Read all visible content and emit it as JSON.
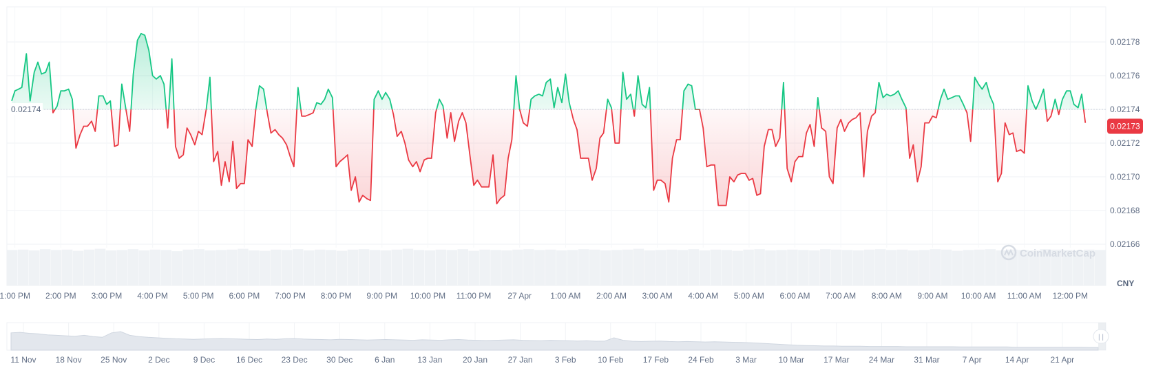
{
  "chart_data": {
    "type": "area",
    "baseline": 0.02174,
    "baseline_label": "0.02174",
    "current_value": 0.02173,
    "current_label": "0.02173",
    "currency": "CNY",
    "watermark": "CoinMarketCap",
    "y_ticks": [
      {
        "value": 0.02178,
        "label": "0.02178"
      },
      {
        "value": 0.02176,
        "label": "0.02176"
      },
      {
        "value": 0.02174,
        "label": "0.02174"
      },
      {
        "value": 0.02172,
        "label": "0.02172"
      },
      {
        "value": 0.0217,
        "label": "0.02170"
      },
      {
        "value": 0.02168,
        "label": "0.02168"
      },
      {
        "value": 0.02166,
        "label": "0.02166"
      }
    ],
    "ylim": [
      0.021657,
      0.021799
    ],
    "x_ticks": [
      "1:00 PM",
      "2:00 PM",
      "3:00 PM",
      "4:00 PM",
      "5:00 PM",
      "6:00 PM",
      "7:00 PM",
      "8:00 PM",
      "9:00 PM",
      "10:00 PM",
      "11:00 PM",
      "27 Apr",
      "1:00 AM",
      "2:00 AM",
      "3:00 AM",
      "4:00 AM",
      "5:00 AM",
      "6:00 AM",
      "7:00 AM",
      "8:00 AM",
      "9:00 AM",
      "10:00 AM",
      "11:00 AM",
      "12:00 PM"
    ],
    "x_tick_hours": [
      0,
      1,
      2,
      3,
      4,
      5,
      6,
      7,
      8,
      9,
      10,
      11,
      12,
      13,
      14,
      15,
      16,
      17,
      18,
      19,
      20,
      21,
      22,
      23
    ],
    "x_range_hours": [
      -0.1,
      23.7
    ],
    "points": [
      [
        -0.07,
        0.021745
      ],
      [
        0.0,
        0.021751
      ],
      [
        0.08,
        0.021752
      ],
      [
        0.15,
        0.021753
      ],
      [
        0.25,
        0.021773
      ],
      [
        0.33,
        0.021745
      ],
      [
        0.42,
        0.021762
      ],
      [
        0.5,
        0.021768
      ],
      [
        0.58,
        0.021761
      ],
      [
        0.67,
        0.021762
      ],
      [
        0.75,
        0.021768
      ],
      [
        0.83,
        0.021738
      ],
      [
        0.92,
        0.021742
      ],
      [
        1.0,
        0.021751
      ],
      [
        1.08,
        0.021751
      ],
      [
        1.17,
        0.021752
      ],
      [
        1.25,
        0.021746
      ],
      [
        1.33,
        0.021717
      ],
      [
        1.42,
        0.021725
      ],
      [
        1.5,
        0.02173
      ],
      [
        1.58,
        0.02173
      ],
      [
        1.67,
        0.021733
      ],
      [
        1.75,
        0.021727
      ],
      [
        1.83,
        0.021748
      ],
      [
        1.92,
        0.021748
      ],
      [
        2.0,
        0.021743
      ],
      [
        2.08,
        0.021745
      ],
      [
        2.17,
        0.021718
      ],
      [
        2.25,
        0.021719
      ],
      [
        2.33,
        0.021755
      ],
      [
        2.42,
        0.02174
      ],
      [
        2.5,
        0.021727
      ],
      [
        2.58,
        0.021761
      ],
      [
        2.67,
        0.021781
      ],
      [
        2.75,
        0.021785
      ],
      [
        2.83,
        0.021784
      ],
      [
        2.92,
        0.021775
      ],
      [
        3.0,
        0.02176
      ],
      [
        3.08,
        0.021758
      ],
      [
        3.17,
        0.02176
      ],
      [
        3.25,
        0.021755
      ],
      [
        3.33,
        0.021729
      ],
      [
        3.42,
        0.02177
      ],
      [
        3.5,
        0.021718
      ],
      [
        3.58,
        0.021711
      ],
      [
        3.67,
        0.021713
      ],
      [
        3.75,
        0.021729
      ],
      [
        3.83,
        0.021725
      ],
      [
        3.92,
        0.021719
      ],
      [
        4.0,
        0.021727
      ],
      [
        4.08,
        0.021725
      ],
      [
        4.17,
        0.02174
      ],
      [
        4.25,
        0.021759
      ],
      [
        4.33,
        0.021709
      ],
      [
        4.42,
        0.021715
      ],
      [
        4.5,
        0.021695
      ],
      [
        4.58,
        0.021709
      ],
      [
        4.67,
        0.021697
      ],
      [
        4.75,
        0.021721
      ],
      [
        4.83,
        0.021693
      ],
      [
        4.92,
        0.021696
      ],
      [
        5.0,
        0.021696
      ],
      [
        5.08,
        0.021722
      ],
      [
        5.17,
        0.021718
      ],
      [
        5.25,
        0.02174
      ],
      [
        5.33,
        0.021754
      ],
      [
        5.42,
        0.021752
      ],
      [
        5.5,
        0.021738
      ],
      [
        5.58,
        0.021726
      ],
      [
        5.67,
        0.021728
      ],
      [
        5.75,
        0.021725
      ],
      [
        5.83,
        0.021723
      ],
      [
        5.92,
        0.021719
      ],
      [
        6.0,
        0.021712
      ],
      [
        6.08,
        0.021706
      ],
      [
        6.17,
        0.021753
      ],
      [
        6.25,
        0.021736
      ],
      [
        6.33,
        0.021736
      ],
      [
        6.42,
        0.021737
      ],
      [
        6.5,
        0.021738
      ],
      [
        6.58,
        0.021744
      ],
      [
        6.67,
        0.021743
      ],
      [
        6.75,
        0.021746
      ],
      [
        6.83,
        0.021752
      ],
      [
        6.92,
        0.021747
      ],
      [
        7.0,
        0.021706
      ],
      [
        7.08,
        0.021709
      ],
      [
        7.17,
        0.021711
      ],
      [
        7.25,
        0.021713
      ],
      [
        7.33,
        0.021692
      ],
      [
        7.42,
        0.0217
      ],
      [
        7.5,
        0.021685
      ],
      [
        7.58,
        0.021689
      ],
      [
        7.67,
        0.021687
      ],
      [
        7.75,
        0.021686
      ],
      [
        7.83,
        0.021746
      ],
      [
        7.92,
        0.021751
      ],
      [
        8.0,
        0.021746
      ],
      [
        8.08,
        0.02175
      ],
      [
        8.17,
        0.021746
      ],
      [
        8.25,
        0.021737
      ],
      [
        8.33,
        0.021724
      ],
      [
        8.42,
        0.021727
      ],
      [
        8.5,
        0.02172
      ],
      [
        8.58,
        0.02171
      ],
      [
        8.67,
        0.021706
      ],
      [
        8.75,
        0.021709
      ],
      [
        8.83,
        0.021703
      ],
      [
        8.92,
        0.02171
      ],
      [
        9.0,
        0.021711
      ],
      [
        9.08,
        0.021711
      ],
      [
        9.17,
        0.021738
      ],
      [
        9.25,
        0.021746
      ],
      [
        9.33,
        0.021742
      ],
      [
        9.42,
        0.021723
      ],
      [
        9.5,
        0.021738
      ],
      [
        9.58,
        0.021721
      ],
      [
        9.67,
        0.021733
      ],
      [
        9.75,
        0.021738
      ],
      [
        9.83,
        0.021732
      ],
      [
        9.92,
        0.021712
      ],
      [
        10.0,
        0.021695
      ],
      [
        10.08,
        0.021698
      ],
      [
        10.17,
        0.021694
      ],
      [
        10.25,
        0.021694
      ],
      [
        10.33,
        0.021694
      ],
      [
        10.42,
        0.021713
      ],
      [
        10.5,
        0.021684
      ],
      [
        10.58,
        0.021687
      ],
      [
        10.67,
        0.021689
      ],
      [
        10.75,
        0.021711
      ],
      [
        10.83,
        0.021722
      ],
      [
        10.92,
        0.02176
      ],
      [
        11.0,
        0.02174
      ],
      [
        11.08,
        0.021732
      ],
      [
        11.17,
        0.02173
      ],
      [
        11.25,
        0.021746
      ],
      [
        11.33,
        0.021748
      ],
      [
        11.42,
        0.021749
      ],
      [
        11.5,
        0.021748
      ],
      [
        11.58,
        0.021756
      ],
      [
        11.67,
        0.021758
      ],
      [
        11.75,
        0.021741
      ],
      [
        11.83,
        0.021753
      ],
      [
        11.92,
        0.021744
      ],
      [
        12.0,
        0.021761
      ],
      [
        12.08,
        0.021744
      ],
      [
        12.17,
        0.021734
      ],
      [
        12.25,
        0.021728
      ],
      [
        12.33,
        0.021711
      ],
      [
        12.42,
        0.021711
      ],
      [
        12.5,
        0.021711
      ],
      [
        12.58,
        0.021698
      ],
      [
        12.67,
        0.021705
      ],
      [
        12.75,
        0.021723
      ],
      [
        12.83,
        0.021726
      ],
      [
        12.92,
        0.021746
      ],
      [
        13.0,
        0.021741
      ],
      [
        13.08,
        0.02172
      ],
      [
        13.17,
        0.02172
      ],
      [
        13.25,
        0.021762
      ],
      [
        13.33,
        0.021746
      ],
      [
        13.42,
        0.021749
      ],
      [
        13.5,
        0.021736
      ],
      [
        13.58,
        0.02176
      ],
      [
        13.67,
        0.021743
      ],
      [
        13.75,
        0.021741
      ],
      [
        13.83,
        0.021753
      ],
      [
        13.92,
        0.021692
      ],
      [
        14.0,
        0.021698
      ],
      [
        14.08,
        0.021698
      ],
      [
        14.17,
        0.021696
      ],
      [
        14.25,
        0.021685
      ],
      [
        14.33,
        0.021711
      ],
      [
        14.42,
        0.021722
      ],
      [
        14.5,
        0.021722
      ],
      [
        14.58,
        0.021751
      ],
      [
        14.67,
        0.021755
      ],
      [
        14.75,
        0.021754
      ],
      [
        14.83,
        0.02174
      ],
      [
        14.92,
        0.02174
      ],
      [
        15.0,
        0.021729
      ],
      [
        15.08,
        0.021706
      ],
      [
        15.17,
        0.021707
      ],
      [
        15.25,
        0.021707
      ],
      [
        15.33,
        0.021683
      ],
      [
        15.42,
        0.021683
      ],
      [
        15.5,
        0.021683
      ],
      [
        15.58,
        0.0217
      ],
      [
        15.67,
        0.021697
      ],
      [
        15.75,
        0.021701
      ],
      [
        15.83,
        0.021702
      ],
      [
        15.92,
        0.021702
      ],
      [
        16.0,
        0.021698
      ],
      [
        16.08,
        0.021699
      ],
      [
        16.17,
        0.021689
      ],
      [
        16.25,
        0.02169
      ],
      [
        16.33,
        0.021718
      ],
      [
        16.42,
        0.021728
      ],
      [
        16.5,
        0.021728
      ],
      [
        16.58,
        0.021718
      ],
      [
        16.67,
        0.021723
      ],
      [
        16.75,
        0.021756
      ],
      [
        16.83,
        0.021705
      ],
      [
        16.92,
        0.021697
      ],
      [
        17.0,
        0.021709
      ],
      [
        17.08,
        0.021712
      ],
      [
        17.17,
        0.021712
      ],
      [
        17.25,
        0.021726
      ],
      [
        17.33,
        0.021731
      ],
      [
        17.42,
        0.021718
      ],
      [
        17.5,
        0.021747
      ],
      [
        17.58,
        0.021729
      ],
      [
        17.67,
        0.021727
      ],
      [
        17.75,
        0.0217
      ],
      [
        17.83,
        0.021696
      ],
      [
        17.92,
        0.021729
      ],
      [
        18.0,
        0.021734
      ],
      [
        18.08,
        0.021727
      ],
      [
        18.17,
        0.021732
      ],
      [
        18.25,
        0.021734
      ],
      [
        18.33,
        0.021735
      ],
      [
        18.42,
        0.021738
      ],
      [
        18.5,
        0.0217
      ],
      [
        18.58,
        0.021727
      ],
      [
        18.67,
        0.021736
      ],
      [
        18.75,
        0.021738
      ],
      [
        18.83,
        0.021756
      ],
      [
        18.92,
        0.021747
      ],
      [
        19.0,
        0.021749
      ],
      [
        19.08,
        0.021748
      ],
      [
        19.17,
        0.021749
      ],
      [
        19.25,
        0.021751
      ],
      [
        19.33,
        0.021746
      ],
      [
        19.42,
        0.021741
      ],
      [
        19.5,
        0.021711
      ],
      [
        19.58,
        0.021719
      ],
      [
        19.67,
        0.021697
      ],
      [
        19.75,
        0.021706
      ],
      [
        19.83,
        0.021732
      ],
      [
        19.92,
        0.021732
      ],
      [
        20.0,
        0.021736
      ],
      [
        20.08,
        0.021735
      ],
      [
        20.17,
        0.021746
      ],
      [
        20.25,
        0.021752
      ],
      [
        20.33,
        0.021746
      ],
      [
        20.42,
        0.021747
      ],
      [
        20.5,
        0.021748
      ],
      [
        20.58,
        0.021748
      ],
      [
        20.67,
        0.021743
      ],
      [
        20.75,
        0.021738
      ],
      [
        20.83,
        0.021721
      ],
      [
        20.92,
        0.021759
      ],
      [
        21.0,
        0.021755
      ],
      [
        21.08,
        0.021752
      ],
      [
        21.17,
        0.021756
      ],
      [
        21.25,
        0.021748
      ],
      [
        21.33,
        0.021743
      ],
      [
        21.42,
        0.021697
      ],
      [
        21.5,
        0.021702
      ],
      [
        21.58,
        0.021732
      ],
      [
        21.67,
        0.021725
      ],
      [
        21.75,
        0.021726
      ],
      [
        21.83,
        0.021715
      ],
      [
        21.92,
        0.021716
      ],
      [
        22.0,
        0.021714
      ],
      [
        22.08,
        0.021754
      ],
      [
        22.17,
        0.021745
      ],
      [
        22.25,
        0.02174
      ],
      [
        22.33,
        0.021745
      ],
      [
        22.42,
        0.021752
      ],
      [
        22.5,
        0.021733
      ],
      [
        22.58,
        0.021736
      ],
      [
        22.67,
        0.021746
      ],
      [
        22.75,
        0.021737
      ],
      [
        22.83,
        0.021746
      ],
      [
        22.92,
        0.021751
      ],
      [
        23.0,
        0.021751
      ],
      [
        23.08,
        0.021743
      ],
      [
        23.17,
        0.021741
      ],
      [
        23.25,
        0.021749
      ],
      [
        23.33,
        0.021732
      ]
    ],
    "volume_levels": [
      0.89,
      0.9,
      0.88,
      0.91,
      0.89,
      0.9,
      0.87,
      0.9,
      0.92,
      0.88,
      0.89,
      0.91,
      0.88,
      0.9,
      0.89,
      0.86,
      0.9,
      0.91,
      0.88,
      0.89,
      0.9,
      0.92,
      0.88,
      0.87,
      0.9,
      0.89,
      0.91,
      0.88,
      0.9,
      0.89,
      0.87,
      0.9,
      0.91,
      0.89,
      0.88,
      0.9,
      0.92,
      0.89,
      0.88,
      0.9,
      0.89,
      0.91,
      0.87,
      0.9,
      0.89,
      0.88,
      0.9,
      0.91,
      0.89,
      0.9,
      0.88,
      0.89,
      0.91,
      0.9,
      0.88,
      0.89,
      0.9,
      0.92,
      0.88,
      0.89,
      0.9,
      0.89,
      0.91,
      0.88,
      0.9,
      0.89,
      0.87,
      0.9,
      0.91,
      0.88,
      0.89,
      0.9,
      0.89,
      0.88,
      0.91,
      0.9,
      0.89,
      0.88,
      0.9,
      0.91,
      0.89,
      0.9,
      0.88,
      0.89,
      0.91,
      0.9,
      0.87,
      0.89,
      0.9,
      0.91,
      0.88,
      0.9,
      0.89,
      0.88,
      0.91,
      0.9,
      0.89,
      0.88,
      0.9,
      0.89
    ]
  },
  "navigator": {
    "x_ticks": [
      "11 Nov",
      "18 Nov",
      "25 Nov",
      "2 Dec",
      "9 Dec",
      "16 Dec",
      "23 Dec",
      "30 Dec",
      "6 Jan",
      "13 Jan",
      "20 Jan",
      "27 Jan",
      "3 Feb",
      "10 Feb",
      "17 Feb",
      "24 Feb",
      "3 Mar",
      "10 Mar",
      "17 Mar",
      "24 Mar",
      "31 Mar",
      "7 Apr",
      "14 Apr",
      "21 Apr"
    ],
    "handle_glyph": "| |",
    "profile": [
      0.7,
      0.72,
      0.68,
      0.66,
      0.62,
      0.6,
      0.58,
      0.56,
      0.6,
      0.55,
      0.52,
      0.7,
      0.75,
      0.6,
      0.55,
      0.52,
      0.5,
      0.48,
      0.46,
      0.45,
      0.44,
      0.45,
      0.46,
      0.47,
      0.46,
      0.45,
      0.44,
      0.43,
      0.45,
      0.44,
      0.46,
      0.47,
      0.45,
      0.44,
      0.43,
      0.42,
      0.44,
      0.43,
      0.42,
      0.41,
      0.42,
      0.43,
      0.42,
      0.41,
      0.4,
      0.42,
      0.41,
      0.4,
      0.42,
      0.43,
      0.41,
      0.4,
      0.39,
      0.4,
      0.41,
      0.42,
      0.4,
      0.39,
      0.38,
      0.4,
      0.39,
      0.38,
      0.37,
      0.38,
      0.36,
      0.37,
      0.5,
      0.4,
      0.36,
      0.35,
      0.36,
      0.37,
      0.35,
      0.34,
      0.35,
      0.34,
      0.33,
      0.34,
      0.33,
      0.32,
      0.31,
      0.3,
      0.28,
      0.26,
      0.24,
      0.22,
      0.2,
      0.19,
      0.18,
      0.17,
      0.17,
      0.16,
      0.16,
      0.16,
      0.15,
      0.15,
      0.15,
      0.15,
      0.14,
      0.14,
      0.14,
      0.14,
      0.14,
      0.14,
      0.13,
      0.13,
      0.13,
      0.13,
      0.13,
      0.13,
      0.12,
      0.12,
      0.12,
      0.12,
      0.12,
      0.12,
      0.12,
      0.12,
      0.11,
      0.11
    ]
  },
  "colors": {
    "up": "#16c784",
    "down": "#ea3943",
    "grid": "#eff2f5",
    "axis_text": "#616e85",
    "volume": "#eff2f5",
    "watermark": "#d6dbe3"
  }
}
